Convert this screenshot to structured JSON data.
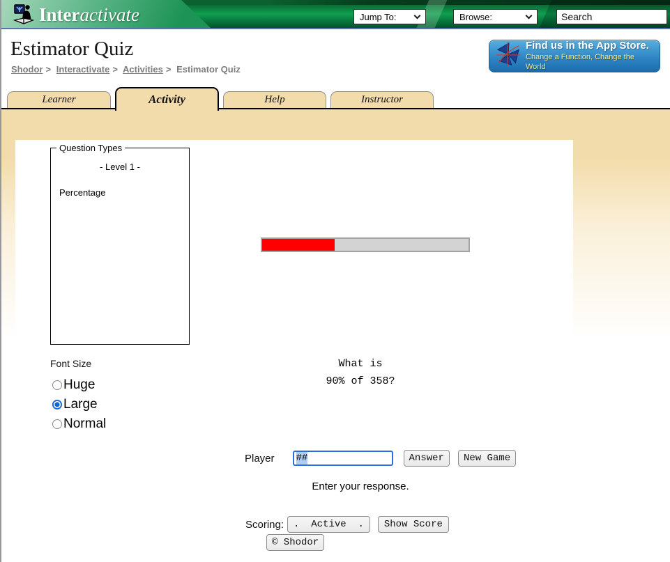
{
  "header": {
    "logo": {
      "bold": "Inter",
      "italic": "activate"
    },
    "jump_to_label": "Jump To:",
    "browse_label": "Browse:",
    "search_value": "Search"
  },
  "page": {
    "title": "Estimator Quiz",
    "breadcrumb": [
      {
        "label": "Shodor"
      },
      {
        "label": "Interactivate"
      },
      {
        "label": "Activities"
      },
      {
        "label": "Estimator Quiz"
      }
    ],
    "breadcrumb_separator": ">",
    "app_store_badge": {
      "line1": "Find us in the App Store.",
      "line2": "Change a Function, Change the World"
    }
  },
  "tabs": [
    {
      "label": "Learner",
      "active": false
    },
    {
      "label": "Activity",
      "active": true
    },
    {
      "label": "Help",
      "active": false
    },
    {
      "label": "Instructor",
      "active": false
    }
  ],
  "applet": {
    "question_types": {
      "legend": "Question Types",
      "level": "- Level 1 -",
      "items": [
        "Percentage"
      ]
    },
    "progress": {
      "percent": 35,
      "fill_color": "#ff0000",
      "track_color": "#d3d3d3"
    },
    "question": {
      "line1": "What is",
      "line2": "90% of 358?"
    },
    "font_size": {
      "label": "Font Size",
      "options": [
        {
          "label": "Huge",
          "selected": false
        },
        {
          "label": "Large",
          "selected": true
        },
        {
          "label": "Normal",
          "selected": false
        }
      ]
    },
    "player": {
      "label": "Player",
      "value": "##"
    },
    "response_hint": "Enter your response.",
    "scoring": {
      "label": "Scoring:",
      "active_button": ".  Active  .",
      "show_score_button": "Show Score"
    },
    "buttons": {
      "answer": "Answer",
      "new_game": "New Game",
      "copyright": "© Shodor"
    }
  },
  "colors": {
    "header_green_bright": "#0f9f50",
    "header_green_dark": "#02512a",
    "blue_rule": "#4f74b3",
    "tab_tan": "#f3dcab",
    "badge_blue": "#2f86c4",
    "progress_red": "#ff0000",
    "selection_blue": "#aecdf0",
    "focus_blue": "#2b6fdb",
    "breadcrumb_gray": "#7d7d7d"
  }
}
